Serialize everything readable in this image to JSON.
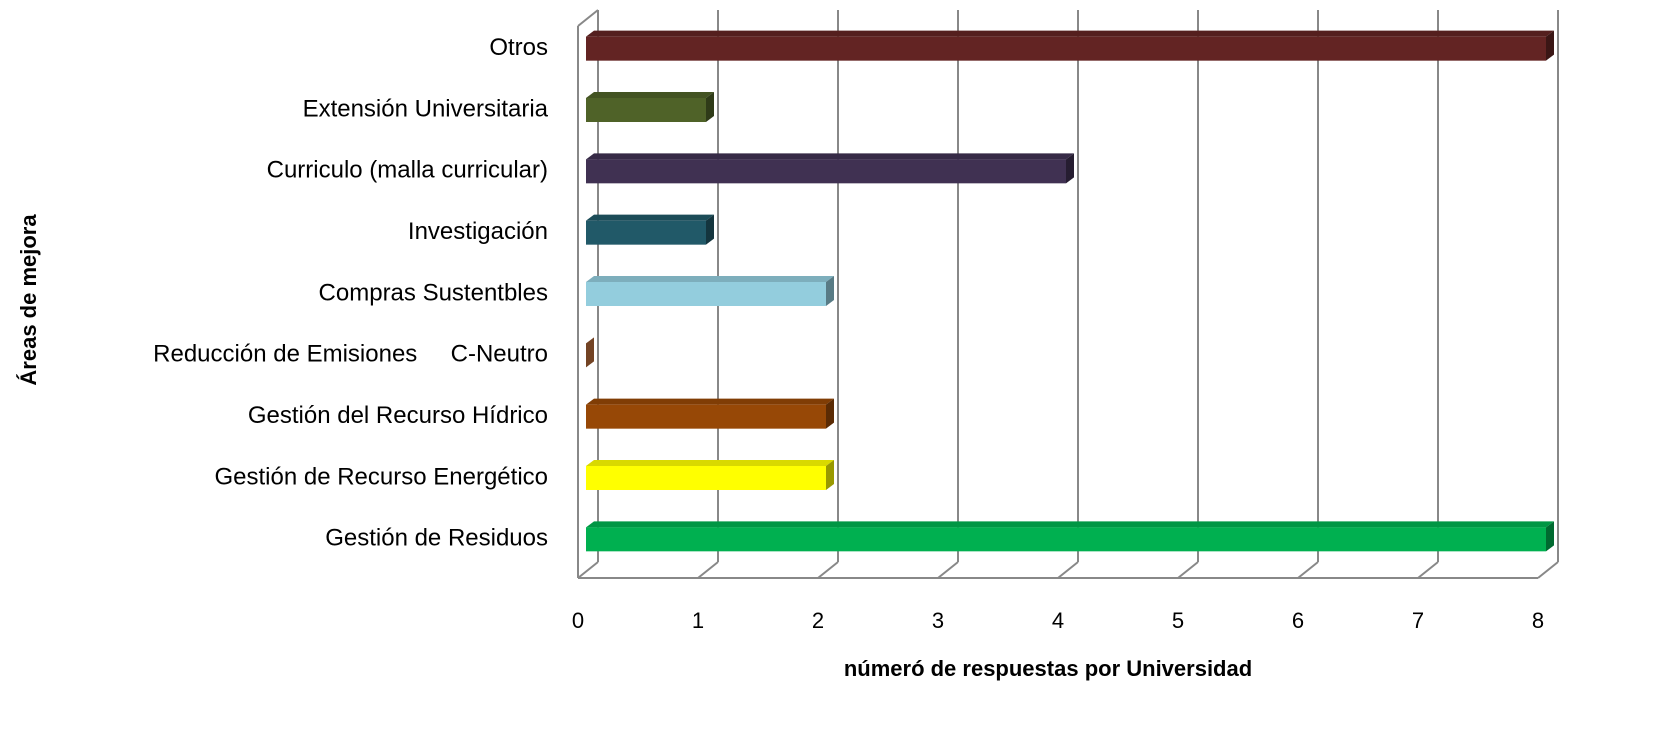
{
  "chart_data": {
    "type": "bar3d_horizontal",
    "xlabel": "númeró de respuestas por Universidad",
    "ylabel": "Áreas de mejora",
    "categories": [
      "Otros",
      "Extensión Universitaria",
      "Curriculo (malla curricular)",
      "Investigación",
      "Compras Sustentbles",
      "Reducción de Emisiones     C-Neutro",
      "Gestión del Recurso Hídrico",
      "Gestión de Recurso Energético",
      "Gestión de Residuos"
    ],
    "values": [
      8,
      1,
      4,
      1,
      2,
      0,
      2,
      2,
      8
    ],
    "colors": [
      "#632423",
      "#4f6228",
      "#403152",
      "#215968",
      "#93cddd",
      "#c0703c",
      "#974806",
      "#ffff00",
      "#00b050"
    ],
    "xlim": [
      0,
      8
    ],
    "xticks": [
      0,
      1,
      2,
      3,
      4,
      5,
      6,
      7,
      8
    ],
    "grid": true
  }
}
